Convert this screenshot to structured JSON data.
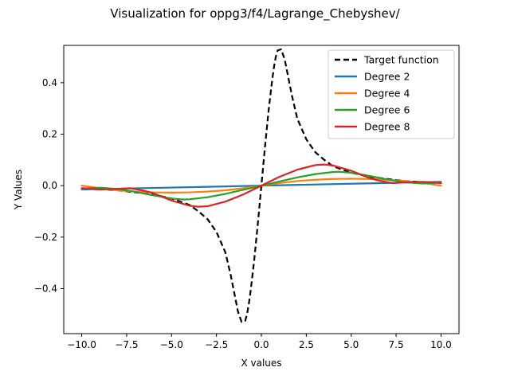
{
  "chart_data": {
    "type": "line",
    "title": "Visualization for oppg3/f4/Lagrange_Chebyshev/",
    "xlabel": "X values",
    "ylabel": "Y Values",
    "xlim": [
      -11.0,
      11.0
    ],
    "ylim": [
      -0.575,
      0.545
    ],
    "xticks": [
      -10.0,
      -7.5,
      -5.0,
      -2.5,
      0.0,
      2.5,
      5.0,
      7.5,
      10.0
    ],
    "xtick_labels": [
      "−10.0",
      "−7.5",
      "−5.0",
      "−2.5",
      "0.0",
      "2.5",
      "5.0",
      "7.5",
      "10.0"
    ],
    "yticks": [
      -0.4,
      -0.2,
      0.0,
      0.2,
      0.4
    ],
    "ytick_labels": [
      "−0.4",
      "−0.2",
      "0.0",
      "0.2",
      "0.4"
    ],
    "legend_position": "top-right",
    "grid": false,
    "series": [
      {
        "name": "Target function",
        "color": "#000000",
        "dash": "dashed",
        "x": [
          -10,
          -9,
          -8,
          -7,
          -6,
          -5,
          -4,
          -3.5,
          -3,
          -2.5,
          -2,
          -1.7,
          -1.5,
          -1.3,
          -1.1,
          -0.9,
          -0.8,
          -0.7,
          -0.6,
          -0.5,
          -0.4,
          -0.3,
          -0.2,
          -0.1,
          0,
          0.1,
          0.2,
          0.3,
          0.4,
          0.5,
          0.6,
          0.7,
          0.8,
          0.9,
          1.1,
          1.3,
          1.5,
          1.7,
          2,
          2.5,
          3,
          3.5,
          4,
          5,
          6,
          7,
          8,
          9,
          10
        ],
        "y": [
          -0.01,
          -0.013,
          -0.018,
          -0.026,
          -0.035,
          -0.05,
          -0.075,
          -0.1,
          -0.13,
          -0.18,
          -0.26,
          -0.35,
          -0.42,
          -0.49,
          -0.53,
          -0.525,
          -0.5,
          -0.46,
          -0.41,
          -0.35,
          -0.29,
          -0.22,
          -0.15,
          -0.075,
          0,
          0.075,
          0.15,
          0.22,
          0.29,
          0.35,
          0.41,
          0.46,
          0.5,
          0.525,
          0.53,
          0.49,
          0.42,
          0.35,
          0.26,
          0.18,
          0.13,
          0.1,
          0.075,
          0.05,
          0.035,
          0.026,
          0.018,
          0.013,
          0.01
        ]
      },
      {
        "name": "Degree 2",
        "color": "#1f77b4",
        "dash": "solid",
        "x": [
          -10,
          -7.5,
          -5,
          -2.5,
          0,
          2.5,
          5,
          7.5,
          10
        ],
        "y": [
          -0.015,
          -0.011,
          -0.0075,
          -0.0038,
          0,
          0.0038,
          0.0075,
          0.011,
          0.015
        ]
      },
      {
        "name": "Degree 4",
        "color": "#ff7f0e",
        "dash": "solid",
        "x": [
          -10,
          -9,
          -8,
          -7,
          -6,
          -5,
          -4,
          -3,
          -2,
          -1,
          0,
          1,
          2,
          3,
          4,
          5,
          6,
          7,
          8,
          9,
          10
        ],
        "y": [
          0.0,
          -0.01,
          -0.018,
          -0.023,
          -0.026,
          -0.027,
          -0.026,
          -0.023,
          -0.018,
          -0.01,
          0,
          0.01,
          0.018,
          0.023,
          0.026,
          0.027,
          0.026,
          0.023,
          0.018,
          0.01,
          0.0
        ]
      },
      {
        "name": "Degree 6",
        "color": "#2ca02c",
        "dash": "solid",
        "x": [
          -10,
          -9,
          -8,
          -7,
          -6,
          -5,
          -4.3,
          -4,
          -3,
          -2,
          -1,
          0,
          1,
          2,
          3,
          4,
          4.3,
          5,
          6,
          7,
          8,
          9,
          10
        ],
        "y": [
          -0.012,
          -0.008,
          -0.013,
          -0.024,
          -0.038,
          -0.05,
          -0.054,
          -0.053,
          -0.045,
          -0.032,
          -0.016,
          0,
          0.016,
          0.032,
          0.045,
          0.053,
          0.054,
          0.05,
          0.038,
          0.024,
          0.013,
          0.008,
          0.012
        ]
      },
      {
        "name": "Degree 8",
        "color": "#d62728",
        "dash": "solid",
        "x": [
          -10,
          -9,
          -8,
          -7.3,
          -6.5,
          -6,
          -5,
          -4,
          -3.5,
          -3,
          -2,
          -1,
          0,
          1,
          2,
          3,
          3.5,
          4,
          5,
          6,
          6.5,
          7.3,
          8,
          9,
          10
        ],
        "y": [
          -0.01,
          -0.015,
          -0.013,
          -0.01,
          -0.02,
          -0.03,
          -0.058,
          -0.078,
          -0.082,
          -0.08,
          -0.062,
          -0.034,
          0,
          0.034,
          0.062,
          0.08,
          0.082,
          0.078,
          0.058,
          0.03,
          0.02,
          0.01,
          0.013,
          0.015,
          0.01
        ]
      }
    ]
  }
}
